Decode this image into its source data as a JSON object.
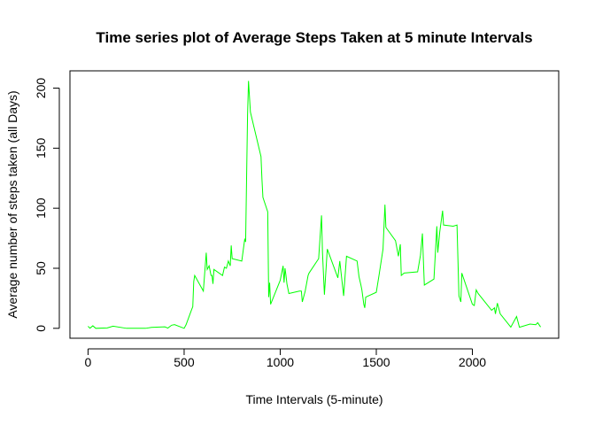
{
  "chart_data": {
    "type": "line",
    "title": "Time series plot of Average Steps Taken at 5 minute Intervals",
    "x_label": "Time Intervals (5-minute)",
    "y_label": "Average number of steps taken (all Days)",
    "x": [
      0,
      10,
      25,
      40,
      100,
      130,
      200,
      300,
      330,
      400,
      415,
      435,
      450,
      500,
      510,
      540,
      545,
      550,
      555,
      600,
      615,
      620,
      630,
      640,
      645,
      650,
      655,
      700,
      710,
      720,
      730,
      740,
      745,
      750,
      800,
      815,
      820,
      830,
      835,
      845,
      900,
      905,
      910,
      935,
      940,
      945,
      950,
      1000,
      1015,
      1020,
      1025,
      1030,
      1035,
      1045,
      1100,
      1110,
      1115,
      1130,
      1145,
      1150,
      1200,
      1215,
      1220,
      1230,
      1245,
      1300,
      1310,
      1330,
      1345,
      1400,
      1410,
      1420,
      1425,
      1435,
      1440,
      1445,
      1500,
      1515,
      1535,
      1545,
      1550,
      1600,
      1615,
      1625,
      1630,
      1645,
      1715,
      1730,
      1740,
      1745,
      1750,
      1800,
      1815,
      1820,
      1830,
      1845,
      1850,
      1900,
      1920,
      1930,
      1940,
      1945,
      2000,
      2010,
      2020,
      2030,
      2100,
      2115,
      2120,
      2130,
      2145,
      2200,
      2230,
      2245,
      2300,
      2330,
      2340,
      2355
    ],
    "series": [
      {
        "name": "steps",
        "color": "#00ff00",
        "values": [
          1.7,
          0.1,
          2.1,
          0,
          0.3,
          1.8,
          0,
          0,
          0.8,
          1.2,
          0.2,
          2.6,
          3.1,
          0,
          3.0,
          16,
          18,
          39,
          44,
          31,
          63,
          49,
          52,
          44,
          44,
          37,
          49,
          44,
          51,
          50,
          56,
          52,
          69,
          58,
          56,
          74,
          72,
          177,
          206,
          180,
          143,
          124,
          109,
          97,
          26,
          38,
          20,
          40,
          52,
          38,
          50,
          44,
          37,
          29,
          31,
          31,
          22,
          31,
          44,
          46,
          58,
          94,
          63,
          28,
          66,
          42,
          56,
          27,
          60,
          56,
          43,
          36,
          32,
          20,
          17,
          26,
          30,
          45,
          66,
          103,
          84,
          73,
          60,
          70,
          44,
          46,
          47,
          61,
          79,
          57,
          36,
          41,
          85,
          63,
          80,
          98,
          86,
          85,
          86,
          27,
          22,
          46,
          20,
          19,
          32,
          29,
          15,
          17,
          12,
          21,
          12,
          1,
          9.8,
          0.9,
          3.5,
          3,
          4.7,
          1.1
        ]
      }
    ],
    "xlim": [
      -94.2,
      2449.2
    ],
    "ylim": [
      -8.25,
      214.4
    ],
    "xticks": [
      0,
      500,
      1000,
      1500,
      2000
    ],
    "yticks": [
      0,
      50,
      100,
      150,
      200
    ]
  }
}
